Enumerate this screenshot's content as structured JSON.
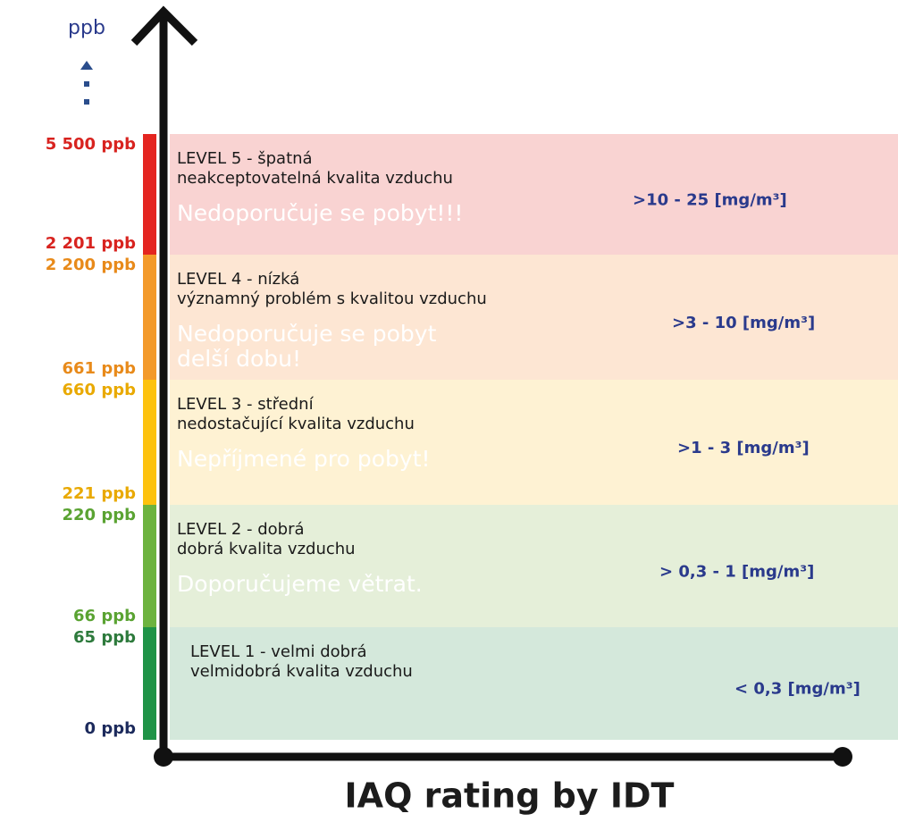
{
  "axis_label": "ppb",
  "title": "IAQ rating by IDT",
  "levels": [
    {
      "top_label": "5 500 ppb",
      "bottom_label": "2 201 ppb",
      "title": "LEVEL 5 - špatná",
      "description": "neakceptovatelná kvalita vzduchu",
      "advice": [
        "Nedoporučuje se pobyt!!!"
      ],
      "range": ">10 - 25  [mg/m³]",
      "color": "#e42520",
      "light": "#f9d3d2",
      "label_color": "#d8231f"
    },
    {
      "top_label": "2 200 ppb",
      "bottom_label": "661 ppb",
      "title": "LEVEL 4 -  nízká",
      "description": "významný problém s kvalitou vzduchu",
      "advice": [
        "Nedoporučuje se pobyt",
        "delší  dobu!"
      ],
      "range": ">3 - 10  [mg/m³]",
      "color": "#f39a2b",
      "light": "#fde6d3",
      "label_color": "#e88a1a"
    },
    {
      "top_label": "660 ppb",
      "bottom_label": "221 ppb",
      "title": "LEVEL 3 -  střední",
      "description": "nedostačující kvalita vzduchu",
      "advice": [
        "Nepříjmené pro pobyt!"
      ],
      "range": ">1 - 3  [mg/m³]",
      "color": "#fdc20e",
      "light": "#fef2d3",
      "label_color": "#e9a900"
    },
    {
      "top_label": "220 ppb",
      "bottom_label": "66 ppb",
      "title": "LEVEL 2 -  dobrá",
      "description": "dobrá kvalita vzduchu",
      "advice": [
        "Doporučujeme větrat."
      ],
      "range": "> 0,3 - 1  [mg/m³]",
      "color": "#6db33f",
      "light": "#e5efd9",
      "label_color": "#5aa332"
    },
    {
      "top_label": "65 ppb",
      "bottom_label": "0 ppb",
      "title": "LEVEL 1 -  velmi dobrá",
      "description": "velmidobrá kvalita vzduchu",
      "advice": [],
      "range": "< 0,3  [mg/m³]",
      "color": "#1f9347",
      "light": "#d4e8db",
      "label_color": "#2d7a3c"
    }
  ]
}
